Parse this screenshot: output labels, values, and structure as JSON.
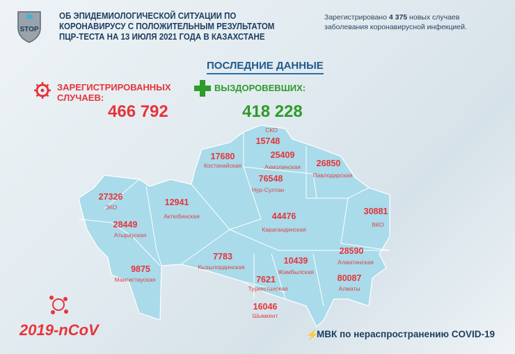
{
  "header": {
    "logo_text": "STOP",
    "title_lines": [
      "ОБ ЭПИДЕМИОЛОГИЧЕСКОЙ СИТУАЦИИ ПО",
      "КОРОНАВИРУСУ С ПОЛОЖИТЕЛЬНЫМ РЕЗУЛЬТАТОМ",
      "ПЦР-ТЕСТА НА 13 ИЮЛЯ 2021 ГОДА В КАЗАХСТАНЕ"
    ],
    "note_prefix": "Зарегистрировано ",
    "note_count": "4 375",
    "note_suffix": " новых случаев",
    "note_line2": "заболевания коронавирусной инфекцией."
  },
  "latest_label": "ПОСЛЕДНИЕ ДАННЫЕ",
  "registered": {
    "label_1": "ЗАРЕГИСТРИРОВАННЫХ",
    "label_2": "СЛУЧАЕВ:",
    "value": "466 792",
    "icon": "virus-icon"
  },
  "recovered": {
    "label": "ВЫЗДОРОВЕВШИХ:",
    "value": "418 228",
    "icon": "plus-icon"
  },
  "regions": [
    {
      "name": "СКО",
      "value": "15748"
    },
    {
      "name": "Костанайская",
      "value": "17680"
    },
    {
      "name": "Акмолинская",
      "value": "25409"
    },
    {
      "name": "Павлодарская",
      "value": "26850"
    },
    {
      "name": "Нур-Султан",
      "value": "76548"
    },
    {
      "name": "ЗКО",
      "value": "27326"
    },
    {
      "name": "Актюбинская",
      "value": "12941"
    },
    {
      "name": "Карагандинская",
      "value": "44476"
    },
    {
      "name": "ВКО",
      "value": "30881"
    },
    {
      "name": "Атырауская",
      "value": "28449"
    },
    {
      "name": "Алматинская",
      "value": "28590"
    },
    {
      "name": "Кызылординская",
      "value": "7783"
    },
    {
      "name": "Жамбылская",
      "value": "10439"
    },
    {
      "name": "Мангистауская",
      "value": "9875"
    },
    {
      "name": "Туркестанская",
      "value": "7621"
    },
    {
      "name": "Алматы",
      "value": "80087"
    },
    {
      "name": "Шымкент",
      "value": "16046"
    }
  ],
  "footer": {
    "ncov": "2019-nCoV",
    "mvk": "МВК по нераспространению COVID-19"
  },
  "colors": {
    "red": "#e5343a",
    "green": "#2e9a2a",
    "map": "#a9dbea",
    "navy": "#1c3d5e"
  }
}
